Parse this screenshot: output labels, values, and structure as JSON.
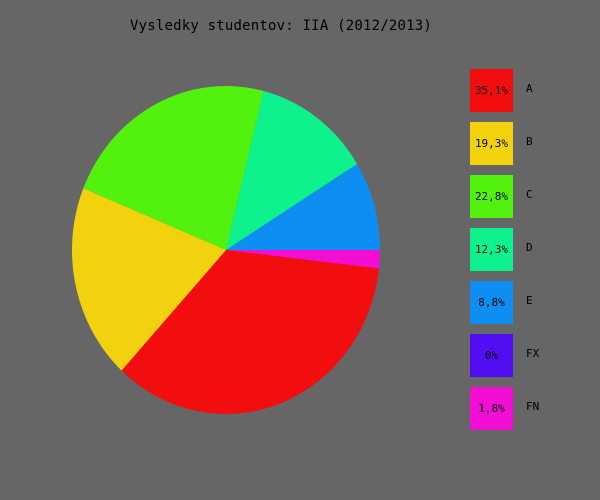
{
  "chart_data": {
    "type": "pie",
    "title": "Vysledky studentov: IIA (2012/2013)",
    "categories": [
      "A",
      "B",
      "C",
      "D",
      "E",
      "FX",
      "FN"
    ],
    "values": [
      35.1,
      19.3,
      22.8,
      12.3,
      8.8,
      0,
      1.8
    ],
    "value_labels": [
      "35,1%",
      "19,3%",
      "22,8%",
      "12,3%",
      "8,8%",
      "0%",
      "1,8%"
    ],
    "colors": [
      "#f20e0e",
      "#f2d20e",
      "#52f20e",
      "#0ef28e",
      "#0e8ef2",
      "#520ef2",
      "#f20ed2"
    ],
    "background": "#666666",
    "legend_position": "right"
  }
}
